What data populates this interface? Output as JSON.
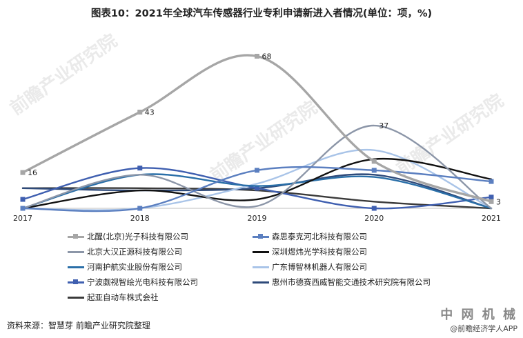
{
  "title": "图表10：2021年全球汽车传感器行业专利申请新进入者情况(单位：项，%)",
  "source": "资料来源：智慧芽 前瞻产业研究院整理",
  "brand": {
    "name_cn": "中 网 机 械",
    "app": "@前瞻经济学人APP"
  },
  "watermark": "前瞻产业研究院",
  "chart_data": {
    "type": "line",
    "categories": [
      "2017",
      "2018",
      "2019",
      "2020",
      "2021"
    ],
    "ylim": [
      0,
      70
    ],
    "grid": false,
    "legend_position": "bottom",
    "series": [
      {
        "name": "北醒(北京)光子科技有限公司",
        "color": "#a6a6a6",
        "marker": true,
        "values": [
          16,
          43,
          68,
          21,
          3
        ],
        "labels": [
          "16",
          "43",
          "68",
          "",
          "3"
        ]
      },
      {
        "name": "森思泰克河北科技有限公司",
        "color": "#5b7fc0",
        "marker": true,
        "values": [
          0,
          0,
          17,
          17,
          12
        ]
      },
      {
        "name": "北京大汉正源科技有限公司",
        "color": "#8c96a8",
        "marker": false,
        "values": [
          0,
          15,
          1,
          37,
          0
        ],
        "labels": [
          "",
          "",
          "",
          "37",
          ""
        ]
      },
      {
        "name": "深圳煜炜光学科技有限公司",
        "color": "#111111",
        "marker": false,
        "values": [
          0,
          8,
          4,
          22,
          13
        ]
      },
      {
        "name": "河南护航实业股份有限公司",
        "color": "#2a6fa8",
        "marker": false,
        "values": [
          0,
          15,
          10,
          14,
          0
        ]
      },
      {
        "name": "广东博智林机器人有限公司",
        "color": "#a9c4e8",
        "marker": false,
        "values": [
          0,
          0,
          11,
          26,
          0
        ]
      },
      {
        "name": "宁波觑视智绘光电科技有限公司",
        "color": "#3f5fb0",
        "marker": true,
        "values": [
          4,
          18,
          9,
          0,
          5
        ]
      },
      {
        "name": "惠州市德赛西威智能交通技术研究院有限公司",
        "color": "#2e4a7a",
        "marker": false,
        "values": [
          9,
          8,
          9,
          15,
          0
        ]
      },
      {
        "name": "起亚自动车株式会社",
        "color": "#3a3a3a",
        "marker": false,
        "values": [
          9,
          9,
          8,
          3,
          0
        ]
      }
    ]
  }
}
